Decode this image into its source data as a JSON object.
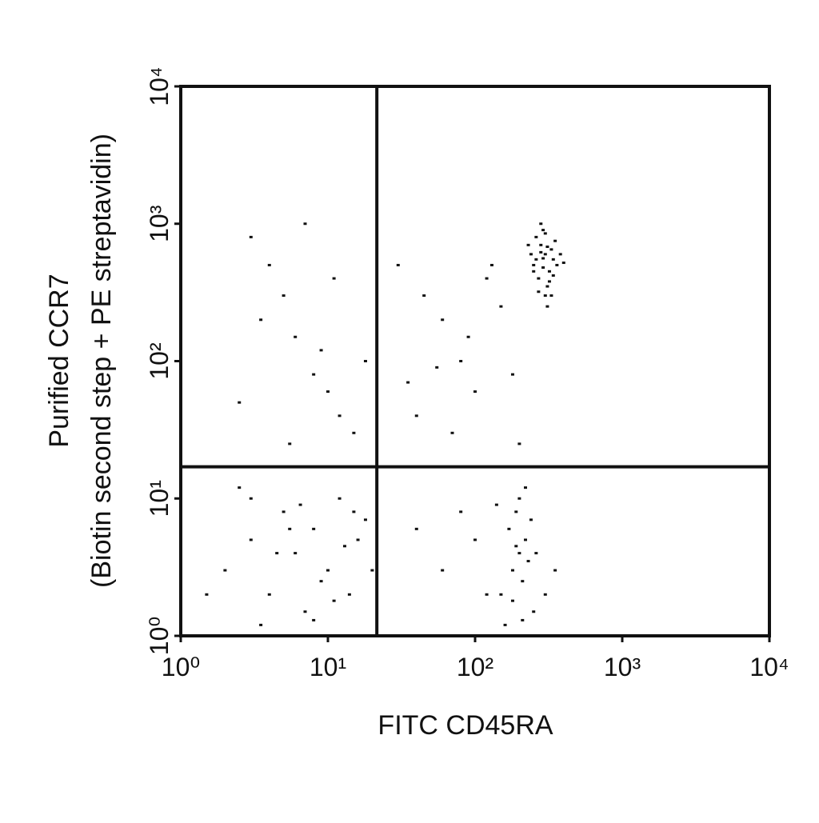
{
  "chart_data": {
    "type": "scatter",
    "x_label": "FITC CD45RA",
    "y_label": [
      "Purified CCR7",
      "(Biotin second step + PE streptavidin)"
    ],
    "log_x": true,
    "log_y": true,
    "xlim": [
      1,
      10000
    ],
    "ylim": [
      1,
      10000
    ],
    "xticks": [
      {
        "value": 1,
        "label": "10⁰"
      },
      {
        "value": 10,
        "label": "10¹"
      },
      {
        "value": 100,
        "label": "10²"
      },
      {
        "value": 1000,
        "label": "10³"
      },
      {
        "value": 10000,
        "label": "10⁴"
      }
    ],
    "yticks": [
      {
        "value": 1,
        "label": "10⁰"
      },
      {
        "value": 10,
        "label": "10¹"
      },
      {
        "value": 100,
        "label": "10²"
      },
      {
        "value": 1000,
        "label": "10³"
      },
      {
        "value": 10000,
        "label": "10⁴"
      }
    ],
    "quadrant_x": 21.5,
    "quadrant_y": 17,
    "series": [
      {
        "color": "#111111",
        "x": [
          250,
          280,
          300,
          320,
          260,
          310,
          340,
          290,
          270,
          330,
          360,
          240,
          300,
          280,
          350,
          310,
          260,
          290,
          320,
          380,
          230,
          270,
          300,
          340,
          290,
          310,
          250,
          330,
          280,
          400,
          30,
          45,
          60,
          80,
          100,
          120,
          150,
          40,
          70,
          90,
          180,
          200,
          55,
          130,
          35,
          3,
          4,
          5,
          6,
          8,
          10,
          12,
          15,
          3.5,
          7,
          9,
          2.5,
          5.5,
          11,
          18,
          2,
          3,
          4,
          5,
          6,
          7,
          8,
          10,
          12,
          14,
          16,
          18,
          2.5,
          3.5,
          4.5,
          5.5,
          6.5,
          9,
          11,
          13,
          15,
          20,
          1.5,
          3,
          8,
          150,
          180,
          200,
          220,
          250,
          170,
          190,
          210,
          230,
          160,
          240,
          200,
          180,
          220,
          260,
          100,
          120,
          80,
          60,
          40,
          300,
          350,
          140,
          210,
          190
        ],
        "values": [
          500,
          700,
          600,
          450,
          800,
          350,
          550,
          900,
          400,
          650,
          500,
          600,
          300,
          1000,
          750,
          250,
          550,
          480,
          380,
          600,
          700,
          320,
          850,
          420,
          560,
          680,
          450,
          300,
          620,
          520,
          500,
          300,
          200,
          100,
          60,
          400,
          250,
          40,
          30,
          150,
          80,
          25,
          90,
          500,
          70,
          800,
          500,
          300,
          150,
          80,
          60,
          40,
          30,
          200,
          1000,
          120,
          50,
          25,
          400,
          100,
          3,
          5,
          2,
          8,
          4,
          1.5,
          6,
          3,
          10,
          2,
          5,
          7,
          12,
          1.2,
          4,
          6,
          9,
          2.5,
          1.8,
          4.5,
          8,
          3,
          2,
          10,
          1.3,
          2,
          3,
          4,
          5,
          1.5,
          6,
          8,
          2.5,
          3.5,
          1.2,
          7,
          10,
          1.8,
          12,
          4,
          5,
          2,
          8,
          3,
          6,
          2,
          3,
          9,
          1.3,
          4.5
        ]
      }
    ]
  }
}
